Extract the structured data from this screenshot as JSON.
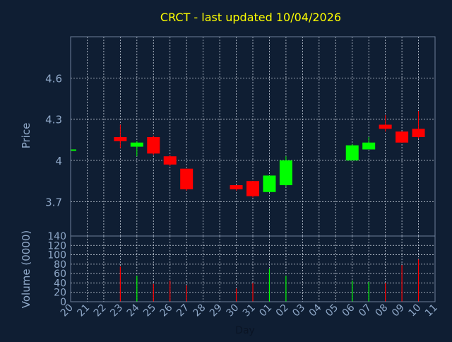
{
  "chart_data": [
    {
      "type": "candlestick",
      "title": "CRCT - last updated 10/04/2026",
      "ylabel": "Price",
      "ylim": [
        3.45,
        4.9
      ],
      "yticks": [
        {
          "value": 3.7,
          "label": "3.7"
        },
        {
          "value": 4.0,
          "label": "4"
        },
        {
          "value": 4.3,
          "label": "4.3"
        },
        {
          "value": 4.6,
          "label": "4.6"
        }
      ],
      "grid": true,
      "colors": {
        "up": "#00ff00",
        "down": "#ff0000"
      },
      "candles": [
        {
          "day": "20",
          "open": 4.08,
          "high": 4.08,
          "low": 4.08,
          "close": 4.08
        },
        {
          "day": "23",
          "open": 4.17,
          "high": 4.26,
          "low": 4.09,
          "close": 4.14
        },
        {
          "day": "24",
          "open": 4.1,
          "high": 4.14,
          "low": 4.03,
          "close": 4.13
        },
        {
          "day": "25",
          "open": 4.17,
          "high": 4.18,
          "low": 4.04,
          "close": 4.05
        },
        {
          "day": "26",
          "open": 4.03,
          "high": 4.04,
          "low": 3.96,
          "close": 3.97
        },
        {
          "day": "27",
          "open": 3.94,
          "high": 3.94,
          "low": 3.78,
          "close": 3.79
        },
        {
          "day": "30",
          "open": 3.82,
          "high": 3.82,
          "low": 3.78,
          "close": 3.79
        },
        {
          "day": "31",
          "open": 3.85,
          "high": 3.85,
          "low": 3.73,
          "close": 3.74
        },
        {
          "day": "01",
          "open": 3.77,
          "high": 3.89,
          "low": 3.77,
          "close": 3.89
        },
        {
          "day": "02",
          "open": 3.82,
          "high": 4.03,
          "low": 3.81,
          "close": 4.0
        },
        {
          "day": "06",
          "open": 4.0,
          "high": 4.12,
          "low": 4.0,
          "close": 4.11
        },
        {
          "day": "07",
          "open": 4.08,
          "high": 4.17,
          "low": 4.08,
          "close": 4.13
        },
        {
          "day": "08",
          "open": 4.26,
          "high": 4.33,
          "low": 4.21,
          "close": 4.23
        },
        {
          "day": "09",
          "open": 4.21,
          "high": 4.21,
          "low": 4.13,
          "close": 4.13
        },
        {
          "day": "10",
          "open": 4.23,
          "high": 4.36,
          "low": 4.16,
          "close": 4.17
        }
      ]
    },
    {
      "type": "bar",
      "ylabel": "Volume (0000)",
      "xlabel": "Day",
      "ylim": [
        0,
        140
      ],
      "yticks": [
        0,
        20,
        40,
        60,
        80,
        100,
        120,
        140
      ],
      "grid": true,
      "categories": [
        "20",
        "21",
        "22",
        "23",
        "24",
        "25",
        "26",
        "27",
        "28",
        "29",
        "30",
        "31",
        "01",
        "02",
        "03",
        "04",
        "05",
        "06",
        "07",
        "08",
        "09",
        "10",
        "11"
      ],
      "volumes": [
        {
          "day": "23",
          "value": 75,
          "direction": "down"
        },
        {
          "day": "24",
          "value": 55,
          "direction": "up"
        },
        {
          "day": "25",
          "value": 38,
          "direction": "down"
        },
        {
          "day": "26",
          "value": 45,
          "direction": "down"
        },
        {
          "day": "27",
          "value": 35,
          "direction": "down"
        },
        {
          "day": "30",
          "value": 28,
          "direction": "down"
        },
        {
          "day": "31",
          "value": 40,
          "direction": "down"
        },
        {
          "day": "01",
          "value": 70,
          "direction": "up"
        },
        {
          "day": "02",
          "value": 55,
          "direction": "up"
        },
        {
          "day": "06",
          "value": 45,
          "direction": "up"
        },
        {
          "day": "07",
          "value": 42,
          "direction": "up"
        },
        {
          "day": "08",
          "value": 40,
          "direction": "down"
        },
        {
          "day": "09",
          "value": 78,
          "direction": "down"
        },
        {
          "day": "10",
          "value": 90,
          "direction": "down"
        }
      ]
    }
  ]
}
